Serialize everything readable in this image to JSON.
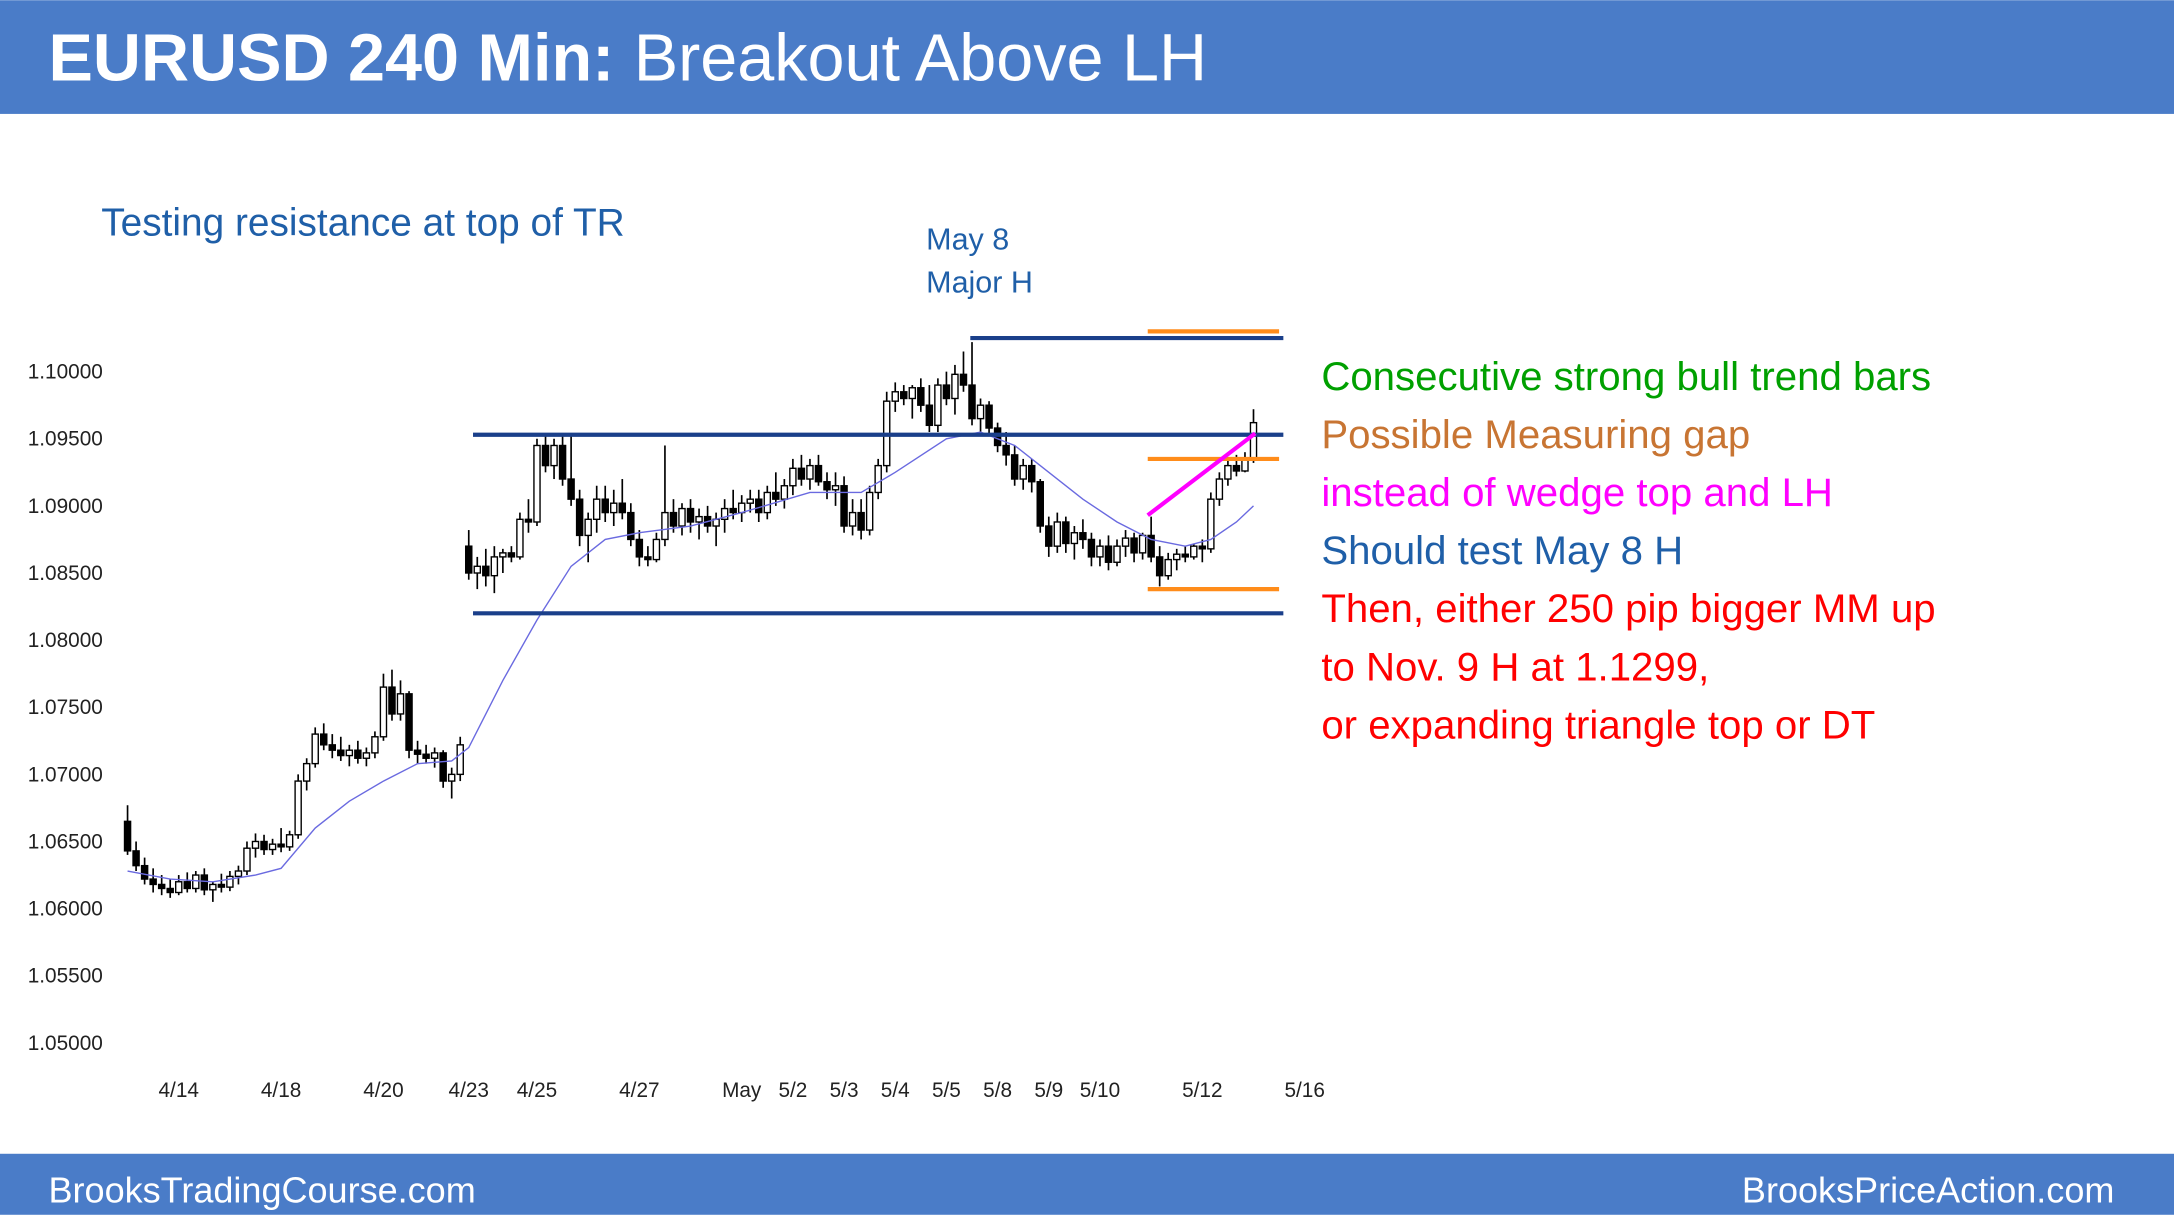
{
  "chart_data": {
    "type": "candlestick",
    "title": "EURUSD 240 Min:",
    "subtitle": "Breakout Above LH",
    "annotations": [
      {
        "text": "Testing resistance at top of TR",
        "color": "#1f5fa8"
      },
      {
        "text": "May 8",
        "color": "#1f5fa8"
      },
      {
        "text": "Major H",
        "color": "#1f5fa8"
      }
    ],
    "notes": [
      {
        "text": "Consecutive strong bull trend bars",
        "color": "#00a000"
      },
      {
        "text": "Possible Measuring gap",
        "color": "#c87533"
      },
      {
        "text": "instead of wedge top and LH",
        "color": "#ff00ff"
      },
      {
        "text": "Should test May 8 H",
        "color": "#1f5fa8"
      },
      {
        "text": "Then, either 250 pip bigger MM up",
        "color": "#ff0000"
      },
      {
        "text": "to Nov. 9 H at 1.1299,",
        "color": "#ff0000"
      },
      {
        "text": "or expanding triangle top or DT",
        "color": "#ff0000"
      }
    ],
    "footer": {
      "left": "BrooksTradingCourse.com",
      "right": "BrooksPriceAction.com"
    },
    "ylim": [
      1.0475,
      1.1035
    ],
    "yticks": [
      {
        "value": 1.05,
        "label": "1.05000"
      },
      {
        "value": 1.055,
        "label": "1.05500"
      },
      {
        "value": 1.06,
        "label": "1.06000"
      },
      {
        "value": 1.065,
        "label": "1.06500"
      },
      {
        "value": 1.07,
        "label": "1.07000"
      },
      {
        "value": 1.075,
        "label": "1.07500"
      },
      {
        "value": 1.08,
        "label": "1.08000"
      },
      {
        "value": 1.085,
        "label": "1.08500"
      },
      {
        "value": 1.09,
        "label": "1.09000"
      },
      {
        "value": 1.095,
        "label": "1.09500"
      },
      {
        "value": 1.1,
        "label": "1.10000"
      }
    ],
    "xlim": [
      0,
      138
    ],
    "xticks": [
      {
        "value": 6,
        "label": "4/14"
      },
      {
        "value": 18,
        "label": "4/18"
      },
      {
        "value": 30,
        "label": "4/20"
      },
      {
        "value": 40,
        "label": "4/23"
      },
      {
        "value": 48,
        "label": "4/25"
      },
      {
        "value": 60,
        "label": "4/27"
      },
      {
        "value": 72,
        "label": "May"
      },
      {
        "value": 78,
        "label": "5/2"
      },
      {
        "value": 84,
        "label": "5/3"
      },
      {
        "value": 90,
        "label": "5/4"
      },
      {
        "value": 96,
        "label": "5/5"
      },
      {
        "value": 102,
        "label": "5/8"
      },
      {
        "value": 108,
        "label": "5/9"
      },
      {
        "value": 114,
        "label": "5/10"
      },
      {
        "value": 126,
        "label": "5/12"
      },
      {
        "value": 138,
        "label": "5/16"
      }
    ],
    "candles": [
      [
        1.0665,
        1.0677,
        1.064,
        1.0643
      ],
      [
        1.0643,
        1.065,
        1.0628,
        1.0632
      ],
      [
        1.0632,
        1.0638,
        1.0618,
        1.0622
      ],
      [
        1.0622,
        1.063,
        1.0612,
        1.0618
      ],
      [
        1.0618,
        1.0625,
        1.061,
        1.0615
      ],
      [
        1.0615,
        1.0622,
        1.0608,
        1.0612
      ],
      [
        1.0612,
        1.0625,
        1.061,
        1.062
      ],
      [
        1.062,
        1.0627,
        1.0612,
        1.0615
      ],
      [
        1.0615,
        1.0628,
        1.0612,
        1.0625
      ],
      [
        1.0625,
        1.063,
        1.061,
        1.0614
      ],
      [
        1.0614,
        1.062,
        1.0605,
        1.0618
      ],
      [
        1.0618,
        1.0626,
        1.0612,
        1.0616
      ],
      [
        1.0616,
        1.0628,
        1.0613,
        1.0624
      ],
      [
        1.0624,
        1.0632,
        1.0618,
        1.0628
      ],
      [
        1.0628,
        1.065,
        1.0625,
        1.0645
      ],
      [
        1.0645,
        1.0656,
        1.0638,
        1.065
      ],
      [
        1.065,
        1.0655,
        1.064,
        1.0644
      ],
      [
        1.0644,
        1.0652,
        1.064,
        1.0648
      ],
      [
        1.0648,
        1.066,
        1.0642,
        1.0646
      ],
      [
        1.0646,
        1.0658,
        1.0643,
        1.0655
      ],
      [
        1.0655,
        1.07,
        1.0652,
        1.0695
      ],
      [
        1.0695,
        1.0712,
        1.0688,
        1.0708
      ],
      [
        1.0708,
        1.0735,
        1.0705,
        1.073
      ],
      [
        1.073,
        1.0738,
        1.0718,
        1.0722
      ],
      [
        1.0722,
        1.073,
        1.0712,
        1.0718
      ],
      [
        1.0718,
        1.0728,
        1.071,
        1.0714
      ],
      [
        1.0714,
        1.0722,
        1.0706,
        1.0718
      ],
      [
        1.0718,
        1.0725,
        1.0708,
        1.0712
      ],
      [
        1.0712,
        1.072,
        1.0706,
        1.0716
      ],
      [
        1.0716,
        1.0732,
        1.0712,
        1.0728
      ],
      [
        1.0728,
        1.0775,
        1.0725,
        1.0765
      ],
      [
        1.0765,
        1.0778,
        1.074,
        1.0745
      ],
      [
        1.0745,
        1.077,
        1.074,
        1.076
      ],
      [
        1.076,
        1.0762,
        1.0712,
        1.0718
      ],
      [
        1.0718,
        1.0725,
        1.0708,
        1.0715
      ],
      [
        1.0715,
        1.0722,
        1.0708,
        1.0712
      ],
      [
        1.0712,
        1.072,
        1.0705,
        1.0716
      ],
      [
        1.0716,
        1.0718,
        1.069,
        1.0695
      ],
      [
        1.0695,
        1.0705,
        1.0682,
        1.07
      ],
      [
        1.07,
        1.0728,
        1.0695,
        1.0722
      ],
      [
        1.087,
        1.0882,
        1.0845,
        1.085
      ],
      [
        1.085,
        1.0862,
        1.0838,
        1.0855
      ],
      [
        1.0855,
        1.0868,
        1.084,
        1.0848
      ],
      [
        1.0848,
        1.087,
        1.0835,
        1.0862
      ],
      [
        1.0862,
        1.0868,
        1.085,
        1.0865
      ],
      [
        1.0865,
        1.087,
        1.0858,
        1.0862
      ],
      [
        1.0862,
        1.0895,
        1.086,
        1.089
      ],
      [
        1.089,
        1.0905,
        1.088,
        1.0888
      ],
      [
        1.0888,
        1.095,
        1.0885,
        1.0945
      ],
      [
        1.0945,
        1.0952,
        1.0925,
        1.093
      ],
      [
        1.093,
        1.095,
        1.092,
        1.0945
      ],
      [
        1.0945,
        1.0952,
        1.0915,
        1.092
      ],
      [
        1.092,
        1.0952,
        1.09,
        1.0905
      ],
      [
        1.0905,
        1.0912,
        1.087,
        1.0878
      ],
      [
        1.0878,
        1.0895,
        1.0858,
        1.089
      ],
      [
        1.089,
        1.0915,
        1.088,
        1.0905
      ],
      [
        1.0905,
        1.0915,
        1.0888,
        1.0895
      ],
      [
        1.0895,
        1.0912,
        1.0885,
        1.0902
      ],
      [
        1.0902,
        1.092,
        1.089,
        1.0895
      ],
      [
        1.0895,
        1.0902,
        1.087,
        1.0875
      ],
      [
        1.0875,
        1.0882,
        1.0855,
        1.0862
      ],
      [
        1.0862,
        1.087,
        1.0855,
        1.086
      ],
      [
        1.086,
        1.088,
        1.0858,
        1.0875
      ],
      [
        1.0875,
        1.0945,
        1.087,
        1.0895
      ],
      [
        1.0895,
        1.0905,
        1.088,
        1.0885
      ],
      [
        1.0885,
        1.0902,
        1.0878,
        1.0898
      ],
      [
        1.0898,
        1.0905,
        1.088,
        1.0888
      ],
      [
        1.0888,
        1.0898,
        1.0875,
        1.0892
      ],
      [
        1.0892,
        1.09,
        1.088,
        1.0885
      ],
      [
        1.0885,
        1.0895,
        1.087,
        1.089
      ],
      [
        1.089,
        1.0905,
        1.088,
        1.0898
      ],
      [
        1.0898,
        1.0912,
        1.089,
        1.0895
      ],
      [
        1.0895,
        1.0908,
        1.0888,
        1.0902
      ],
      [
        1.0902,
        1.0912,
        1.0895,
        1.0905
      ],
      [
        1.0905,
        1.0912,
        1.0888,
        1.0895
      ],
      [
        1.0895,
        1.0915,
        1.089,
        1.091
      ],
      [
        1.091,
        1.0925,
        1.09,
        1.0905
      ],
      [
        1.0905,
        1.092,
        1.0898,
        1.0915
      ],
      [
        1.0915,
        1.0935,
        1.0908,
        1.0928
      ],
      [
        1.0928,
        1.0938,
        1.0915,
        1.092
      ],
      [
        1.092,
        1.0935,
        1.0912,
        1.093
      ],
      [
        1.093,
        1.0938,
        1.0915,
        1.0918
      ],
      [
        1.0918,
        1.0925,
        1.0905,
        1.0912
      ],
      [
        1.0912,
        1.0925,
        1.09,
        1.0915
      ],
      [
        1.0915,
        1.0922,
        1.088,
        1.0885
      ],
      [
        1.0885,
        1.0905,
        1.0878,
        1.0895
      ],
      [
        1.0895,
        1.0905,
        1.0875,
        1.0882
      ],
      [
        1.0882,
        1.0915,
        1.0878,
        1.091
      ],
      [
        1.091,
        1.0935,
        1.0905,
        1.093
      ],
      [
        1.093,
        1.0985,
        1.0925,
        1.0978
      ],
      [
        1.0978,
        1.0992,
        1.097,
        1.0985
      ],
      [
        1.0985,
        1.099,
        1.0975,
        1.098
      ],
      [
        1.098,
        1.099,
        1.0965,
        1.0988
      ],
      [
        1.0988,
        1.0995,
        1.097,
        1.0975
      ],
      [
        1.0975,
        1.099,
        1.0955,
        1.096
      ],
      [
        1.096,
        1.0995,
        1.0955,
        1.099
      ],
      [
        1.099,
        1.1,
        1.0975,
        1.098
      ],
      [
        1.098,
        1.1005,
        1.0968,
        1.0998
      ],
      [
        1.0998,
        1.1015,
        1.0985,
        1.099
      ],
      [
        1.099,
        1.1022,
        1.096,
        1.0965
      ],
      [
        1.0965,
        1.098,
        1.0955,
        1.0975
      ],
      [
        1.0975,
        1.0978,
        1.0952,
        1.0958
      ],
      [
        1.0958,
        1.0962,
        1.094,
        1.0945
      ],
      [
        1.0945,
        1.0955,
        1.093,
        1.0938
      ],
      [
        1.0938,
        1.0945,
        1.0915,
        1.092
      ],
      [
        1.092,
        1.0935,
        1.0912,
        1.093
      ],
      [
        1.093,
        1.0935,
        1.091,
        1.0918
      ],
      [
        1.0918,
        1.092,
        1.088,
        1.0885
      ],
      [
        1.0885,
        1.0892,
        1.0862,
        1.087
      ],
      [
        1.087,
        1.0895,
        1.0865,
        1.0888
      ],
      [
        1.0888,
        1.0892,
        1.0865,
        1.0872
      ],
      [
        1.0872,
        1.0885,
        1.086,
        1.088
      ],
      [
        1.088,
        1.089,
        1.0868,
        1.0875
      ],
      [
        1.0875,
        1.088,
        1.0855,
        1.0862
      ],
      [
        1.0862,
        1.0875,
        1.0855,
        1.087
      ],
      [
        1.087,
        1.0878,
        1.0852,
        1.0858
      ],
      [
        1.0858,
        1.0875,
        1.0855,
        1.087
      ],
      [
        1.087,
        1.0882,
        1.0862,
        1.0876
      ],
      [
        1.0876,
        1.088,
        1.0858,
        1.0865
      ],
      [
        1.0865,
        1.088,
        1.086,
        1.0878
      ],
      [
        1.0878,
        1.0892,
        1.0858,
        1.0862
      ],
      [
        1.0862,
        1.087,
        1.084,
        1.0848
      ],
      [
        1.0848,
        1.0865,
        1.0845,
        1.086
      ],
      [
        1.086,
        1.0868,
        1.0852,
        1.0864
      ],
      [
        1.0864,
        1.087,
        1.0858,
        1.0862
      ],
      [
        1.0862,
        1.0872,
        1.086,
        1.087
      ],
      [
        1.087,
        1.0875,
        1.0858,
        1.0868
      ],
      [
        1.0868,
        1.091,
        1.0865,
        1.0905
      ],
      [
        1.0905,
        1.0925,
        1.09,
        1.092
      ],
      [
        1.092,
        1.0935,
        1.0915,
        1.093
      ],
      [
        1.093,
        1.0938,
        1.0922,
        1.0926
      ],
      [
        1.0926,
        1.094,
        1.0925,
        1.0935
      ],
      [
        1.0935,
        1.0972,
        1.0932,
        1.0962
      ]
    ],
    "moving_average": {
      "color": "#6a6ae0",
      "x": [
        0,
        5,
        10,
        15,
        18,
        22,
        26,
        30,
        34,
        38,
        40,
        44,
        48,
        52,
        56,
        60,
        66,
        72,
        80,
        86,
        90,
        96,
        100,
        104,
        108,
        112,
        116,
        120,
        124,
        127,
        130,
        132
      ],
      "values": [
        1.0628,
        1.0622,
        1.062,
        1.0625,
        1.063,
        1.066,
        1.068,
        1.0695,
        1.0708,
        1.071,
        1.072,
        1.077,
        1.0815,
        1.0855,
        1.0875,
        1.088,
        1.0885,
        1.0895,
        1.091,
        1.091,
        1.0925,
        1.095,
        1.0955,
        1.0945,
        1.0925,
        1.0905,
        1.0888,
        1.0875,
        1.087,
        1.0875,
        1.0888,
        1.09
      ]
    },
    "lines": [
      {
        "color": "#1a3f8a",
        "x": [
          40.5,
          135.5
        ],
        "y": [
          1.0953,
          1.0953
        ]
      },
      {
        "color": "#1a3f8a",
        "x": [
          40.5,
          135.5
        ],
        "y": [
          1.082,
          1.082
        ]
      },
      {
        "color": "#1a3f8a",
        "x": [
          98.8,
          135.5
        ],
        "y": [
          1.1025,
          1.1025
        ]
      },
      {
        "color": "#ff8c1a",
        "x": [
          119.6,
          135
        ],
        "y": [
          1.103,
          1.103
        ]
      },
      {
        "color": "#ff8c1a",
        "x": [
          119.6,
          135
        ],
        "y": [
          1.0935,
          1.0935
        ]
      },
      {
        "color": "#ff8c1a",
        "x": [
          119.6,
          135
        ],
        "y": [
          1.0838,
          1.0838
        ]
      },
      {
        "color": "#ff00ff",
        "x": [
          119.6,
          132.2
        ],
        "y": [
          1.0893,
          1.0954
        ]
      }
    ]
  }
}
